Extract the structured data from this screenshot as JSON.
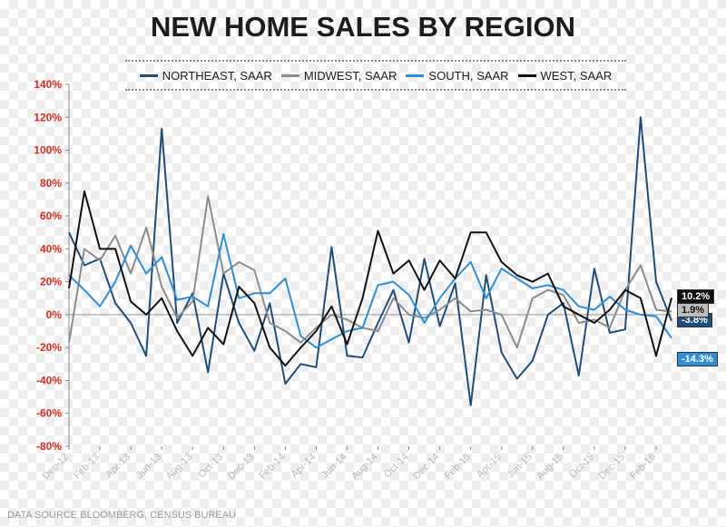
{
  "chart_data": {
    "type": "line",
    "title": "NEW HOME SALES BY REGION",
    "source": "DATA SOURCE BLOOMBERG, CENSUS BUREAU",
    "ylim": [
      -80,
      140
    ],
    "yticks": [
      -80,
      -60,
      -40,
      -20,
      0,
      20,
      40,
      60,
      80,
      100,
      120,
      140
    ],
    "ytick_labels": [
      "-80%",
      "-60%",
      "-40%",
      "-20%",
      "0%",
      "20%",
      "40%",
      "60%",
      "80%",
      "100%",
      "120%",
      "140%"
    ],
    "x_tick_labels": [
      "Dec-12",
      "Feb-13",
      "Apr-13",
      "Jun-13",
      "Aug-13",
      "Oct-13",
      "Dec-13",
      "Feb-14",
      "Apr-14",
      "Jun-14",
      "Aug-14",
      "Oct-14",
      "Dec-14",
      "Feb-15",
      "Apr-15",
      "Jun-15",
      "Aug-15",
      "Oct-15",
      "Dec-15",
      "Feb-16"
    ],
    "x_months": [
      "Dec-12",
      "Jan-13",
      "Feb-13",
      "Mar-13",
      "Apr-13",
      "May-13",
      "Jun-13",
      "Jul-13",
      "Aug-13",
      "Sep-13",
      "Oct-13",
      "Nov-13",
      "Dec-13",
      "Jan-14",
      "Feb-14",
      "Mar-14",
      "Apr-14",
      "May-14",
      "Jun-14",
      "Jul-14",
      "Aug-14",
      "Sep-14",
      "Oct-14",
      "Nov-14",
      "Dec-14",
      "Jan-15",
      "Feb-15",
      "Mar-15",
      "Apr-15",
      "May-15",
      "Jun-15",
      "Jul-15",
      "Aug-15",
      "Sep-15",
      "Oct-15",
      "Nov-15",
      "Dec-15",
      "Jan-16",
      "Feb-16",
      "Mar-16"
    ],
    "grid": false,
    "legend_position": "top",
    "series": [
      {
        "name": "NORTHEAST, SAAR",
        "color": "#1f4e79",
        "end_label": "-3.8%",
        "values": [
          50,
          30,
          34,
          7,
          -5,
          -25,
          113,
          -5,
          13,
          -35,
          25,
          -5,
          -22,
          7,
          -42,
          -30,
          -32,
          41,
          -25,
          -26,
          -5,
          15,
          -17,
          34,
          -7,
          19,
          -55,
          24,
          -23,
          -39,
          -28,
          0,
          7,
          -37,
          28,
          -11,
          -9,
          120,
          20,
          -3.8
        ]
      },
      {
        "name": "MIDWEST, SAAR",
        "color": "#8c8c8c",
        "end_label": "1.9%",
        "values": [
          -17,
          40,
          33,
          48,
          25,
          53,
          17,
          -2,
          8,
          72,
          25,
          32,
          27,
          -5,
          -10,
          -17,
          -8,
          0,
          -3,
          -8,
          -10,
          10,
          0,
          -2,
          3,
          10,
          2,
          3,
          0,
          -20,
          10,
          15,
          12,
          -5,
          -3,
          -8,
          15,
          30,
          3,
          1.9
        ]
      },
      {
        "name": "SOUTH, SAAR",
        "color": "#2e8fd6",
        "end_label": "-14.3%",
        "values": [
          24,
          15,
          5,
          20,
          42,
          25,
          35,
          9,
          11,
          5,
          49,
          10,
          13,
          13,
          22,
          -13,
          -20,
          -15,
          -10,
          -8,
          18,
          20,
          12,
          -5,
          10,
          22,
          32,
          10,
          28,
          22,
          16,
          18,
          15,
          5,
          3,
          11,
          3,
          0,
          -1,
          -14.3
        ]
      },
      {
        "name": "WEST, SAAR",
        "color": "#111111",
        "end_label": "10.2%",
        "values": [
          16,
          75,
          40,
          40,
          8,
          0,
          10,
          -10,
          -25,
          -8,
          -18,
          17,
          7,
          -20,
          -31,
          -20,
          -10,
          5,
          -18,
          10,
          51,
          25,
          33,
          15,
          33,
          22,
          50,
          50,
          32,
          24,
          20,
          25,
          5,
          0,
          -5,
          3,
          15,
          10,
          -25,
          10.2
        ]
      }
    ]
  }
}
